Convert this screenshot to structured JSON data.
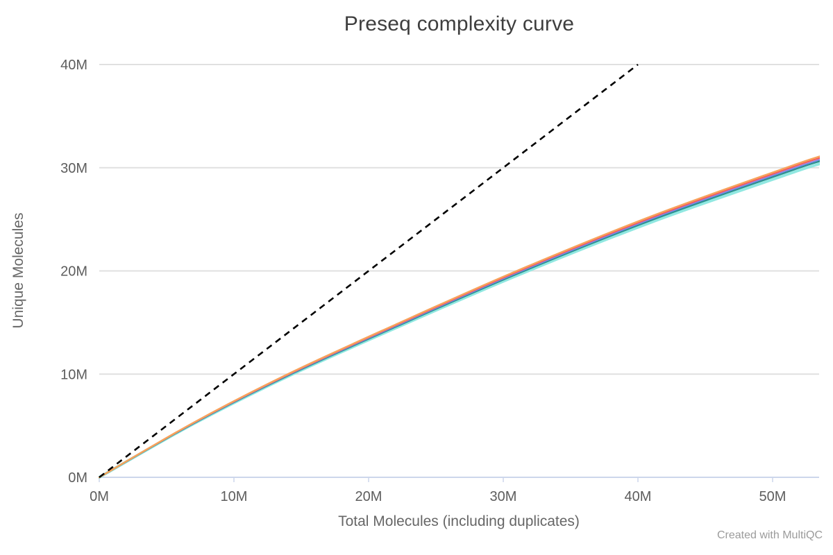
{
  "watermark": "Created with MultiQC",
  "colors": {
    "background": "#ffffff",
    "title_text": "#3e3e3e",
    "tick_text": "#5d5d5d",
    "axis_title_text": "#666666",
    "gridline": "#e0e0e0",
    "axis_line": "#ccd6eb",
    "watermark_text": "#9b9b9b",
    "reference_line": "#000000"
  },
  "chart_data": {
    "type": "line",
    "title": "Preseq complexity curve",
    "xlabel": "Total Molecules (including duplicates)",
    "ylabel": "Unique Molecules",
    "units": "millions of molecules",
    "xlim": [
      0,
      53.5
    ],
    "ylim": [
      0,
      40
    ],
    "x_ticks": [
      {
        "value": 0,
        "label": "0M"
      },
      {
        "value": 10,
        "label": "10M"
      },
      {
        "value": 20,
        "label": "20M"
      },
      {
        "value": 30,
        "label": "30M"
      },
      {
        "value": 40,
        "label": "40M"
      },
      {
        "value": 50,
        "label": "50M"
      }
    ],
    "y_ticks": [
      {
        "value": 0,
        "label": "0M"
      },
      {
        "value": 10,
        "label": "10M"
      },
      {
        "value": 20,
        "label": "20M"
      },
      {
        "value": 30,
        "label": "30M"
      },
      {
        "value": 40,
        "label": "40M"
      }
    ],
    "grid": "horizontal",
    "legend": "none",
    "reference_line": {
      "meaning": "perfect library (y = x)",
      "style": "dashed",
      "color": "#000000",
      "from": [
        0,
        0
      ],
      "to": [
        40,
        40
      ]
    },
    "x": [
      0,
      7,
      14,
      22,
      31,
      41,
      51,
      53.5
    ],
    "base_unique_molecules": [
      0,
      5.3,
      10,
      14.8,
      20,
      25.3,
      30,
      31.1
    ],
    "series": [
      {
        "name": "series-1",
        "color": "#f7a35c",
        "scale": 1.0,
        "width": 2.5
      },
      {
        "name": "series-2",
        "color": "#f45b5b",
        "scale": 0.995,
        "width": 2.2
      },
      {
        "name": "series-3",
        "color": "#8085e9",
        "scale": 0.99,
        "width": 2.0
      },
      {
        "name": "series-4",
        "color": "#2b908f",
        "scale": 0.985,
        "width": 2.5
      },
      {
        "name": "series-5",
        "color": "#91e8e1",
        "scale": 0.977,
        "width": 4.0
      }
    ]
  }
}
